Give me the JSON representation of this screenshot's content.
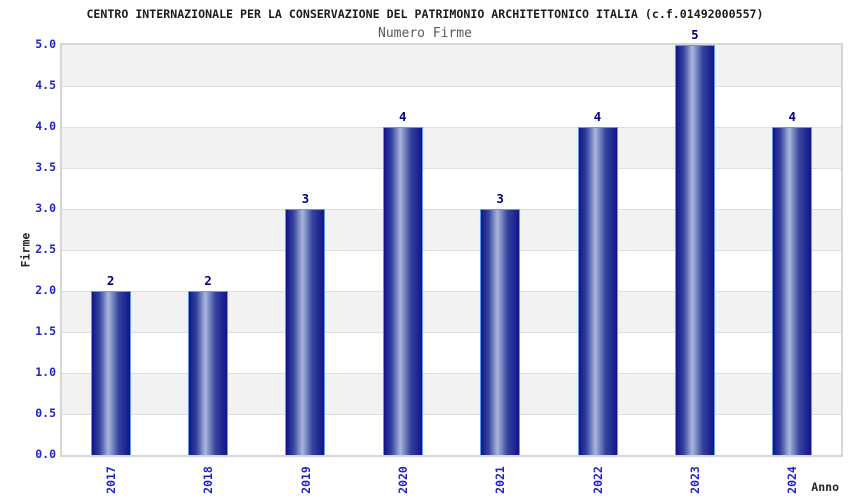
{
  "chart_data": {
    "type": "bar",
    "title": "CENTRO INTERNAZIONALE PER LA CONSERVAZIONE DEL PATRIMONIO ARCHITETTONICO ITALIA (c.f.01492000557)",
    "subtitle": "Numero Firme",
    "xlabel": "Anno",
    "ylabel": "Firme",
    "categories": [
      "2017",
      "2018",
      "2019",
      "2020",
      "2021",
      "2022",
      "2023",
      "2024"
    ],
    "values": [
      2,
      2,
      3,
      4,
      3,
      4,
      5,
      4
    ],
    "value_labels": [
      "2",
      "2",
      "3",
      "4",
      "3",
      "4",
      "5",
      "4"
    ],
    "ylim": [
      0,
      5
    ],
    "ytick_step": 0.5,
    "ytick_labels": [
      "0.0",
      "0.5",
      "1.0",
      "1.5",
      "2.0",
      "2.5",
      "3.0",
      "3.5",
      "4.0",
      "4.5",
      "5.0"
    ],
    "grid": "horizontal alternating bands every 0.5",
    "legend": "none"
  },
  "colors": {
    "background": "#ffffff",
    "title": "#1c1c1c",
    "subtitle": "#5a5a5a",
    "tick_label": "#2222cc",
    "value_label": "#00008b",
    "axis_label": "#262626",
    "band_gray": "#f2f2f2",
    "gridline": "#dedede",
    "plot_border": "#d6d6d6",
    "bar_dark": "#13138a",
    "bar_mid": "#34449e",
    "bar_highlight": "#aab6dc",
    "bar_border": "#5f9ce8"
  }
}
